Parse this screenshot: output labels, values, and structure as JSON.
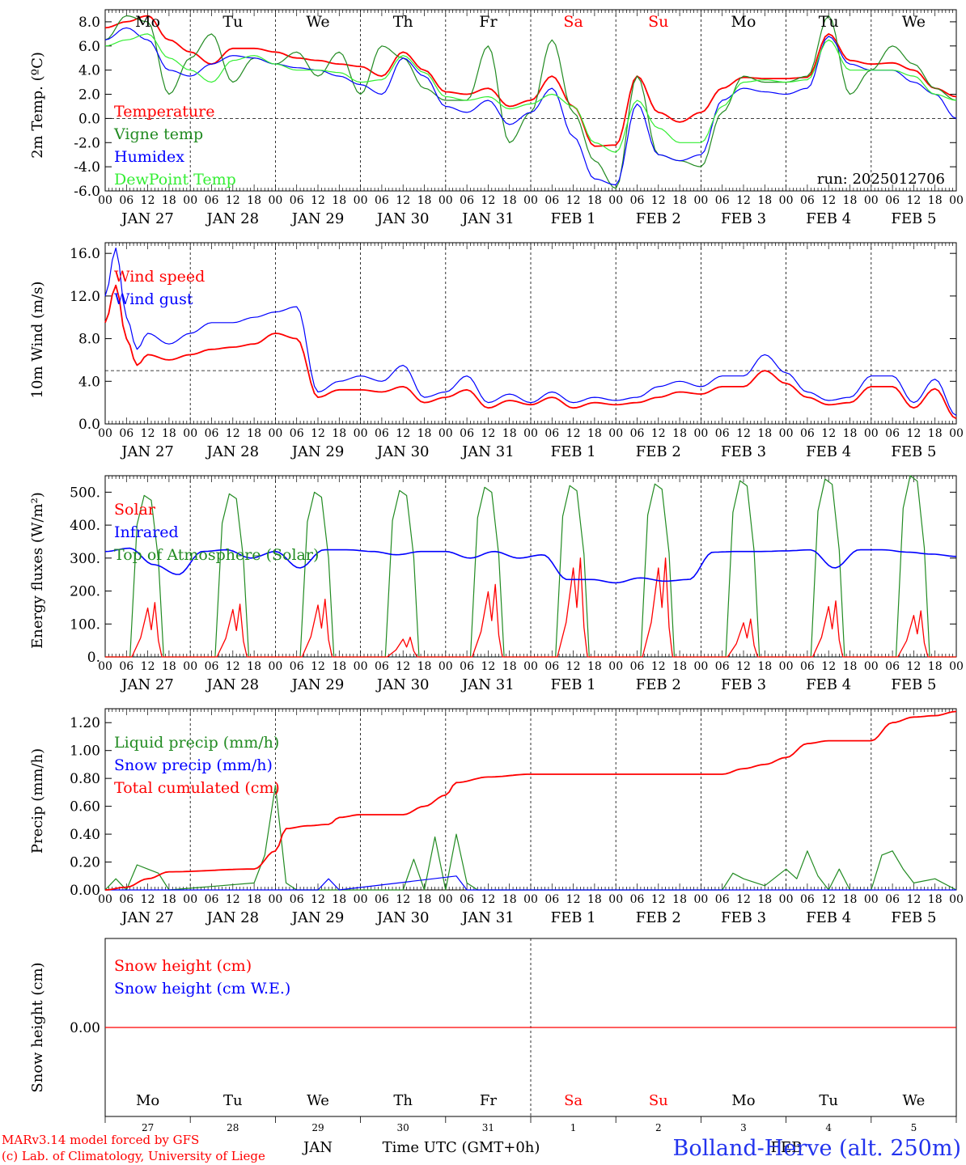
{
  "footer": {
    "model_line": "MARv3.14 model forced by GFS",
    "credit_line": "(c) Lab. of Climatology, University of Liege",
    "location": "Bolland-Herve (alt. 250m)",
    "xlabel": "Time UTC (GMT+0h)",
    "month_jan": "JAN",
    "month_feb": "FEB"
  },
  "axis_common": {
    "hour_labels": [
      "00",
      "06",
      "12",
      "18",
      "00",
      "06",
      "12",
      "18",
      "00",
      "06",
      "12",
      "18",
      "00",
      "06",
      "12",
      "18",
      "00",
      "06",
      "12",
      "18",
      "00",
      "06",
      "12",
      "18",
      "00",
      "06",
      "12",
      "18",
      "00",
      "06",
      "12",
      "18",
      "00",
      "06",
      "12",
      "18",
      "00",
      "06",
      "12",
      "18",
      "00"
    ],
    "date_labels": [
      "JAN 27",
      "JAN 28",
      "JAN 29",
      "JAN 30",
      "JAN 31",
      "FEB 1",
      "FEB 2",
      "FEB 3",
      "FEB 4",
      "FEB 5"
    ],
    "day_names": [
      "Mo",
      "Tu",
      "We",
      "Th",
      "Fr",
      "Sa",
      "Su",
      "Mo",
      "Tu",
      "We"
    ],
    "weekend_color": "#ff0000",
    "weekday_color": "#000000",
    "day_numbers": [
      "27",
      "28",
      "29",
      "30",
      "31",
      "1",
      "2",
      "3",
      "4",
      "5"
    ]
  },
  "chart_data": [
    {
      "type": "line",
      "ylabel": "2m Temp. (ºC)",
      "ylim": [
        -6,
        9
      ],
      "yticks": [
        "-6.0",
        "-4.0",
        "-2.0",
        "0.0",
        "2.0",
        "4.0",
        "6.0",
        "8.0"
      ],
      "reference_line": 0,
      "annotation": "run: 2025012706",
      "x_hours": [
        0,
        6,
        12,
        18,
        24,
        30,
        36,
        42,
        48,
        54,
        60,
        66,
        72,
        78,
        84,
        90,
        96,
        102,
        108,
        114,
        120,
        126,
        132,
        138,
        144,
        150,
        156,
        162,
        168,
        174,
        180,
        186,
        192,
        198,
        204,
        210,
        216,
        222,
        228,
        234,
        240
      ],
      "series": [
        {
          "name": "Temperature",
          "color": "#ff0000",
          "values": [
            7.5,
            8.0,
            8.5,
            6.5,
            5.5,
            4.5,
            5.8,
            5.8,
            5.5,
            5.0,
            4.8,
            4.5,
            4.3,
            3.5,
            5.5,
            4.0,
            2.2,
            2.0,
            2.5,
            1.0,
            1.5,
            3.5,
            1.0,
            -2.3,
            -2.2,
            3.5,
            0.5,
            -0.3,
            0.5,
            2.5,
            3.4,
            3.3,
            3.3,
            3.4,
            7.0,
            4.8,
            4.5,
            4.6,
            4.0,
            2.5,
            1.8
          ]
        },
        {
          "name": "Vigne temp",
          "color": "#228b22",
          "values": [
            6.5,
            8.5,
            8.0,
            2.0,
            5.0,
            7.0,
            3.0,
            5.0,
            4.5,
            5.5,
            3.5,
            5.5,
            2.0,
            6.0,
            5.0,
            2.5,
            1.5,
            1.5,
            6.0,
            -2.0,
            0.5,
            6.5,
            0.5,
            -3.5,
            -5.8,
            3.5,
            -3.0,
            -3.5,
            -4.0,
            0.5,
            3.5,
            3.0,
            3.0,
            3.5,
            8.5,
            2.0,
            4.0,
            6.0,
            4.5,
            2.5,
            1.5
          ]
        },
        {
          "name": "Humidex",
          "color": "#0000ff",
          "values": [
            6.5,
            7.5,
            6.5,
            4.0,
            3.5,
            4.5,
            5.2,
            5.0,
            4.5,
            4.2,
            4.0,
            3.5,
            2.8,
            2.0,
            5.0,
            3.5,
            1.0,
            0.5,
            1.5,
            -0.5,
            0.5,
            2.5,
            -1.5,
            -5.0,
            -5.5,
            1.2,
            -3.0,
            -3.5,
            -3.0,
            1.5,
            2.5,
            2.2,
            2.0,
            2.5,
            6.8,
            4.5,
            4.0,
            4.0,
            3.0,
            2.0,
            0.0
          ]
        },
        {
          "name": "DewPoint Temp",
          "color": "#33ee33",
          "values": [
            6.0,
            6.5,
            7.0,
            5.0,
            4.0,
            3.0,
            4.8,
            5.2,
            4.5,
            4.0,
            4.0,
            3.8,
            3.0,
            3.2,
            5.2,
            3.8,
            1.8,
            1.5,
            1.8,
            0.8,
            1.2,
            2.0,
            1.0,
            -2.0,
            -2.8,
            1.5,
            -0.8,
            -2.0,
            -2.0,
            1.0,
            3.0,
            3.2,
            3.0,
            3.2,
            6.5,
            4.0,
            4.0,
            4.0,
            3.5,
            2.0,
            1.5
          ]
        }
      ]
    },
    {
      "type": "line",
      "ylabel": "10m Wind (m/s)",
      "ylim": [
        0,
        17
      ],
      "yticks": [
        "0.0",
        "4.0",
        "8.0",
        "12.0",
        "16.0"
      ],
      "reference_line": 5,
      "x_hours": [
        0,
        3,
        6,
        9,
        12,
        18,
        24,
        30,
        36,
        42,
        48,
        54,
        60,
        66,
        72,
        78,
        84,
        90,
        96,
        102,
        108,
        114,
        120,
        126,
        132,
        138,
        144,
        150,
        156,
        162,
        168,
        174,
        180,
        186,
        192,
        198,
        204,
        210,
        216,
        222,
        228,
        234,
        240
      ],
      "series": [
        {
          "name": "Wind speed",
          "color": "#ff0000",
          "values": [
            9.5,
            13.0,
            8.0,
            5.5,
            6.5,
            6.0,
            6.5,
            7.0,
            7.2,
            7.5,
            8.5,
            8.0,
            2.5,
            3.2,
            3.2,
            3.0,
            3.5,
            2.0,
            2.5,
            3.2,
            1.5,
            2.2,
            1.8,
            2.5,
            1.5,
            2.0,
            1.8,
            2.0,
            2.5,
            3.0,
            2.8,
            3.5,
            3.5,
            5.0,
            3.8,
            2.5,
            1.8,
            2.0,
            3.5,
            3.5,
            1.5,
            3.3,
            0.5
          ]
        },
        {
          "name": "Wind gust",
          "color": "#0000ff",
          "values": [
            12.0,
            16.5,
            10.0,
            7.0,
            8.5,
            7.5,
            8.5,
            9.5,
            9.5,
            10.0,
            10.5,
            11.0,
            3.0,
            4.0,
            4.5,
            4.0,
            5.5,
            2.5,
            3.0,
            4.5,
            2.0,
            2.8,
            2.0,
            3.0,
            2.0,
            2.5,
            2.2,
            2.5,
            3.5,
            4.0,
            3.5,
            4.5,
            4.5,
            6.5,
            4.8,
            3.0,
            2.2,
            2.5,
            4.5,
            4.5,
            2.0,
            4.2,
            0.8
          ]
        }
      ]
    },
    {
      "type": "line",
      "ylabel": "Energy fluxes (W/m²)",
      "ylim": [
        0,
        550
      ],
      "yticks": [
        "0.",
        "100.",
        "200.",
        "300.",
        "400.",
        "500."
      ],
      "series": [
        {
          "name": "Solar",
          "color": "#ff0000",
          "peaks": [
            165,
            160,
            175,
            60,
            220,
            300,
            300,
            115,
            170,
            140
          ]
        },
        {
          "name": "Infrared",
          "color": "#0000ff",
          "values": [
            320,
            330,
            280,
            250,
            320,
            325,
            300,
            320,
            270,
            325,
            325,
            320,
            310,
            320,
            320,
            300,
            320,
            300,
            310,
            235,
            235,
            225,
            240,
            230,
            235,
            318,
            320,
            320,
            322,
            325,
            270,
            325,
            325,
            318,
            312,
            305
          ]
        },
        {
          "name": "Top of Atmosphere (Solar)",
          "color": "#228b22",
          "peaks": [
            490,
            495,
            500,
            505,
            515,
            520,
            525,
            535,
            540,
            550
          ]
        }
      ]
    },
    {
      "type": "line",
      "ylabel": "Precip (mm/h)",
      "ylim": [
        0,
        1.3
      ],
      "yticks": [
        "0.00",
        "0.20",
        "0.40",
        "0.60",
        "0.80",
        "1.00",
        "1.20"
      ],
      "series": [
        {
          "name": "Liquid precip (mm/h)",
          "color": "#228b22",
          "points": [
            [
              0,
              0
            ],
            [
              3,
              0.08
            ],
            [
              6,
              0
            ],
            [
              9,
              0.18
            ],
            [
              12,
              0.15
            ],
            [
              15,
              0.12
            ],
            [
              18,
              0
            ],
            [
              42,
              0.05
            ],
            [
              45,
              0.25
            ],
            [
              48,
              0.75
            ],
            [
              51,
              0.05
            ],
            [
              54,
              0
            ],
            [
              84,
              0
            ],
            [
              87,
              0.22
            ],
            [
              90,
              0
            ],
            [
              93,
              0.38
            ],
            [
              96,
              0
            ],
            [
              99,
              0.4
            ],
            [
              102,
              0.05
            ],
            [
              105,
              0
            ],
            [
              174,
              0
            ],
            [
              177,
              0.12
            ],
            [
              180,
              0.08
            ],
            [
              186,
              0.03
            ],
            [
              192,
              0.15
            ],
            [
              195,
              0.08
            ],
            [
              198,
              0.28
            ],
            [
              201,
              0.1
            ],
            [
              204,
              0
            ],
            [
              207,
              0.15
            ],
            [
              210,
              0
            ],
            [
              216,
              0
            ],
            [
              219,
              0.25
            ],
            [
              222,
              0.28
            ],
            [
              225,
              0.15
            ],
            [
              228,
              0.05
            ],
            [
              234,
              0.08
            ],
            [
              240,
              0
            ]
          ]
        },
        {
          "name": "Snow precip (mm/h)",
          "color": "#0000ff",
          "points": [
            [
              0,
              0
            ],
            [
              60,
              0
            ],
            [
              63,
              0.08
            ],
            [
              66,
              0
            ],
            [
              99,
              0.1
            ],
            [
              102,
              0
            ],
            [
              240,
              0
            ]
          ]
        },
        {
          "name": "Total cumulated (cm)",
          "color": "#ff0000",
          "points": [
            [
              0,
              0
            ],
            [
              6,
              0.02
            ],
            [
              12,
              0.08
            ],
            [
              18,
              0.13
            ],
            [
              42,
              0.15
            ],
            [
              48,
              0.28
            ],
            [
              51,
              0.44
            ],
            [
              57,
              0.46
            ],
            [
              63,
              0.47
            ],
            [
              66,
              0.52
            ],
            [
              72,
              0.54
            ],
            [
              84,
              0.54
            ],
            [
              90,
              0.6
            ],
            [
              96,
              0.68
            ],
            [
              99,
              0.77
            ],
            [
              108,
              0.81
            ],
            [
              120,
              0.83
            ],
            [
              174,
              0.83
            ],
            [
              180,
              0.87
            ],
            [
              186,
              0.9
            ],
            [
              192,
              0.95
            ],
            [
              198,
              1.05
            ],
            [
              204,
              1.07
            ],
            [
              216,
              1.07
            ],
            [
              222,
              1.2
            ],
            [
              228,
              1.24
            ],
            [
              234,
              1.25
            ],
            [
              240,
              1.28
            ]
          ]
        }
      ]
    },
    {
      "type": "line",
      "ylabel": "Snow height (cm)",
      "yticks": [
        "0.00"
      ],
      "series": [
        {
          "name": "Snow height (cm)",
          "color": "#ff0000",
          "values": [
            0,
            0
          ]
        },
        {
          "name": "Snow height (cm W.E.)",
          "color": "#0000ff",
          "values": [
            0,
            0
          ]
        }
      ]
    }
  ]
}
